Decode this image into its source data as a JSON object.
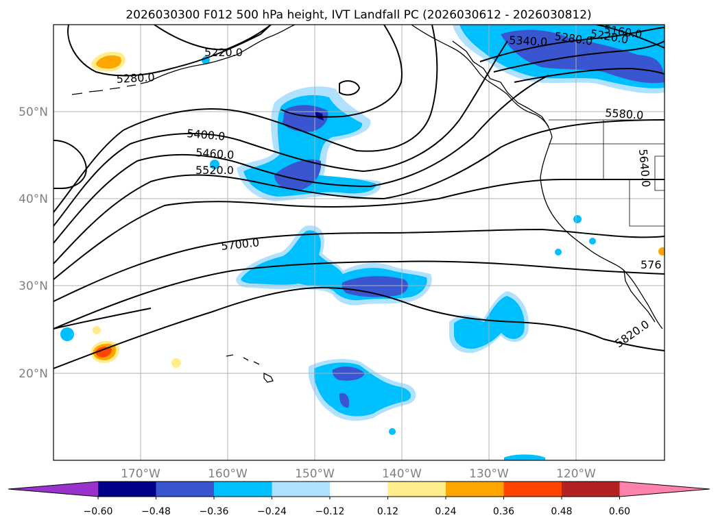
{
  "title": "2026030300 F012 500 hPa height, IVT Landfall PC (2026030612 - 2026030812)",
  "longitude_ticks": [
    "170°W",
    "160°W",
    "150°W",
    "140°W",
    "130°W",
    "120°W"
  ],
  "latitude_ticks": [
    "50°N",
    "40°N",
    "30°N",
    "20°N"
  ],
  "contour_labels": [
    "5220.0",
    "5280.0",
    "5400.0",
    "5460.0",
    "5520.0",
    "5700.0",
    "5340.0",
    "5280.0",
    "5220.0",
    "5160.0",
    "5580.0",
    "5640.0",
    "576",
    "5820.0"
  ],
  "colorbar": {
    "ticks": [
      "−0.60",
      "−0.48",
      "−0.36",
      "−0.24",
      "−0.12",
      "0.12",
      "0.24",
      "0.36",
      "0.48",
      "0.60"
    ],
    "colors": [
      "#9a32cd",
      "#00008b",
      "#3a55d0",
      "#00bfff",
      "#b0e2ff",
      "#ffffff",
      "#ffec8b",
      "#ffa500",
      "#ff4500",
      "#b22222",
      "#ff82ab"
    ]
  }
}
